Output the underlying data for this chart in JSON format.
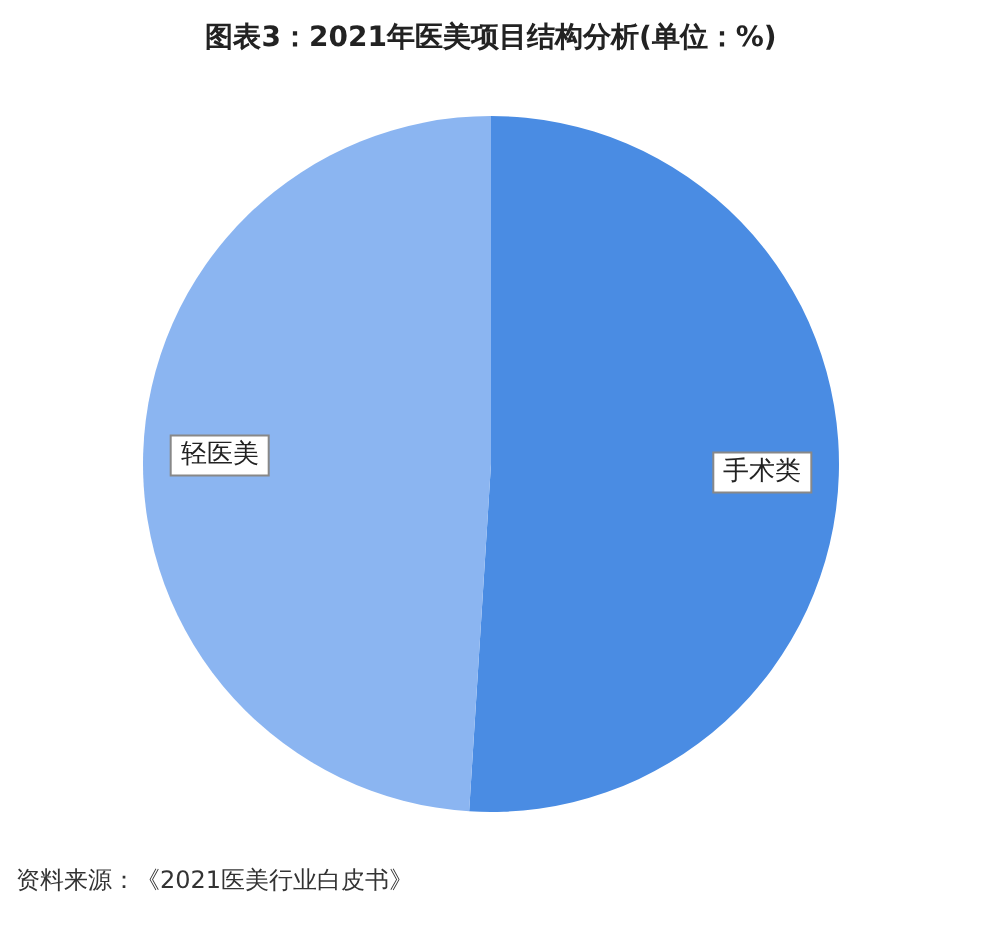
{
  "chart_data": {
    "type": "pie",
    "title": "图表3：2021年医美项目结构分析(单位：%)",
    "categories": [
      "手术类",
      "轻医美"
    ],
    "values": [
      51,
      49
    ],
    "colors": [
      "#4a8ce3",
      "#8bb5f1"
    ],
    "legend": false,
    "annotations": [
      "资料来源：《2021医美行业白皮书》"
    ]
  }
}
